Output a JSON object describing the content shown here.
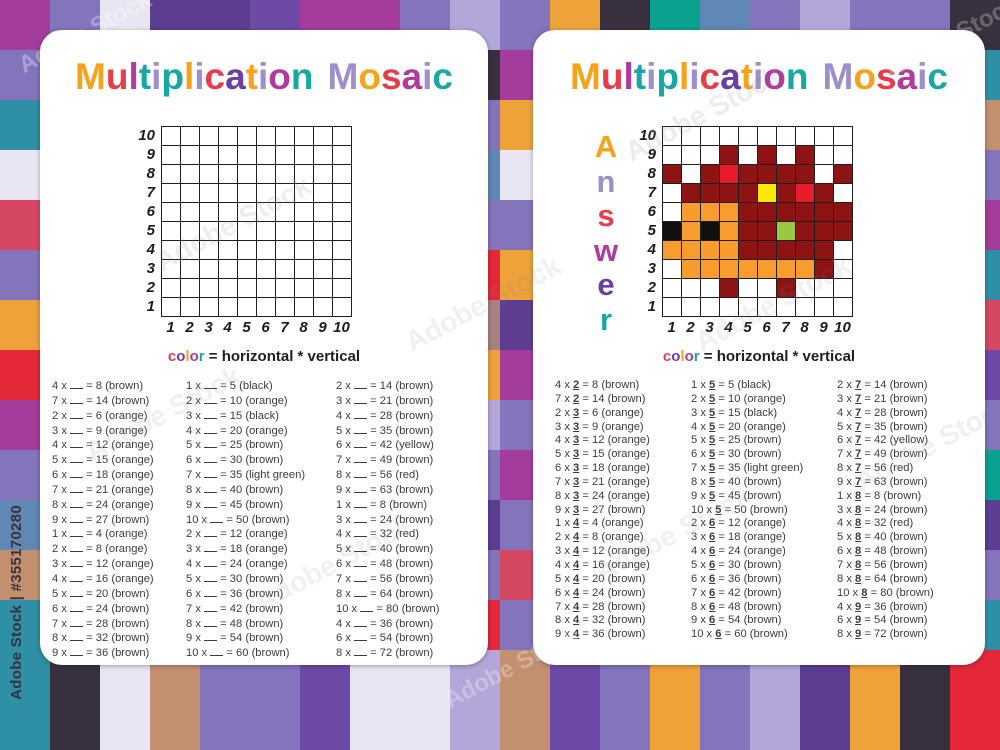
{
  "title": {
    "text": "Multiplication Mosaic",
    "letters": [
      {
        "ch": "M",
        "color": "#F7A21B"
      },
      {
        "ch": "u",
        "color": "#E83C4B"
      },
      {
        "ch": "l",
        "color": "#B13A9C"
      },
      {
        "ch": "t",
        "color": "#18A8A3"
      },
      {
        "ch": "i",
        "color": "#9C8FCC"
      },
      {
        "ch": "p",
        "color": "#18A8A3"
      },
      {
        "ch": "l",
        "color": "#F7A21B"
      },
      {
        "ch": "i",
        "color": "#9C8FCC"
      },
      {
        "ch": "c",
        "color": "#E83C4B"
      },
      {
        "ch": "a",
        "color": "#6B3FA3"
      },
      {
        "ch": "t",
        "color": "#F7A21B"
      },
      {
        "ch": "i",
        "color": "#9C8FCC"
      },
      {
        "ch": "o",
        "color": "#B13A9C"
      },
      {
        "ch": "n",
        "color": "#18A8A3"
      },
      {
        "ch": " ",
        "color": ""
      },
      {
        "ch": "M",
        "color": "#9C8FCC"
      },
      {
        "ch": "o",
        "color": "#F7A21B"
      },
      {
        "ch": "s",
        "color": "#E83C4B"
      },
      {
        "ch": "a",
        "color": "#B13A9C"
      },
      {
        "ch": "i",
        "color": "#9C8FCC"
      },
      {
        "ch": "c",
        "color": "#18A8A3"
      }
    ]
  },
  "answer_word": {
    "text": "Answer",
    "letters": [
      {
        "ch": "A",
        "color": "#F7A21B"
      },
      {
        "ch": "n",
        "color": "#9C8FCC"
      },
      {
        "ch": "s",
        "color": "#E83C4B"
      },
      {
        "ch": "w",
        "color": "#B13A9C"
      },
      {
        "ch": "e",
        "color": "#6B3FA3"
      },
      {
        "ch": "r",
        "color": "#18A8A3"
      }
    ]
  },
  "grid": {
    "row_labels": [
      "10",
      "9",
      "8",
      "7",
      "6",
      "5",
      "4",
      "3",
      "2",
      "1"
    ],
    "col_labels": [
      "1",
      "2",
      "3",
      "4",
      "5",
      "6",
      "7",
      "8",
      "9",
      "10"
    ],
    "legend_color_letters": [
      {
        "ch": "c",
        "color": "#E83C4B"
      },
      {
        "ch": "o",
        "color": "#6B3FA3"
      },
      {
        "ch": "l",
        "color": "#F7A21B"
      },
      {
        "ch": "o",
        "color": "#B13A9C"
      },
      {
        "ch": "r",
        "color": "#18A8A3"
      }
    ],
    "legend_rest": "= horizontal * vertical",
    "times_symbol": "x",
    "equals_symbol": "="
  },
  "colors": {
    "cells": {
      "W": "#FFFFFF",
      "B": "#8E1313",
      "O": "#F79C2D",
      "K": "#101010",
      "R": "#EA1C2C",
      "Y": "#F9E900",
      "G": "#96C93D"
    }
  },
  "answer_grid": [
    [
      "W",
      "W",
      "W",
      "W",
      "W",
      "W",
      "W",
      "W",
      "W",
      "W"
    ],
    [
      "W",
      "W",
      "W",
      "B",
      "W",
      "B",
      "W",
      "B",
      "W",
      "W"
    ],
    [
      "B",
      "W",
      "B",
      "R",
      "B",
      "B",
      "B",
      "B",
      "W",
      "B"
    ],
    [
      "W",
      "B",
      "B",
      "B",
      "B",
      "Y",
      "B",
      "R",
      "B",
      "W"
    ],
    [
      "W",
      "O",
      "O",
      "O",
      "B",
      "B",
      "B",
      "B",
      "B",
      "B"
    ],
    [
      "K",
      "O",
      "K",
      "O",
      "B",
      "B",
      "G",
      "B",
      "B",
      "B"
    ],
    [
      "O",
      "O",
      "O",
      "O",
      "B",
      "B",
      "B",
      "B",
      "B",
      "W"
    ],
    [
      "W",
      "O",
      "O",
      "O",
      "O",
      "O",
      "O",
      "O",
      "B",
      "W"
    ],
    [
      "W",
      "W",
      "W",
      "B",
      "W",
      "W",
      "B",
      "W",
      "W",
      "W"
    ],
    [
      "W",
      "W",
      "W",
      "W",
      "W",
      "W",
      "W",
      "W",
      "W",
      "W"
    ]
  ],
  "problems": {
    "col1": [
      {
        "a": "4",
        "b": "2",
        "result": "8",
        "color": "brown"
      },
      {
        "a": "7",
        "b": "2",
        "result": "14",
        "color": "brown"
      },
      {
        "a": "2",
        "b": "3",
        "result": "6",
        "color": "orange"
      },
      {
        "a": "3",
        "b": "3",
        "result": "9",
        "color": "orange"
      },
      {
        "a": "4",
        "b": "3",
        "result": "12",
        "color": "orange"
      },
      {
        "a": "5",
        "b": "3",
        "result": "15",
        "color": "orange"
      },
      {
        "a": "6",
        "b": "3",
        "result": "18",
        "color": "orange"
      },
      {
        "a": "7",
        "b": "3",
        "result": "21",
        "color": "orange"
      },
      {
        "a": "8",
        "b": "3",
        "result": "24",
        "color": "orange"
      },
      {
        "a": "9",
        "b": "3",
        "result": "27",
        "color": "brown"
      },
      {
        "a": "1",
        "b": "4",
        "result": "4",
        "color": "orange"
      },
      {
        "a": "2",
        "b": "4",
        "result": "8",
        "color": "orange"
      },
      {
        "a": "3",
        "b": "4",
        "result": "12",
        "color": "orange"
      },
      {
        "a": "4",
        "b": "4",
        "result": "16",
        "color": "orange"
      },
      {
        "a": "5",
        "b": "4",
        "result": "20",
        "color": "brown"
      },
      {
        "a": "6",
        "b": "4",
        "result": "24",
        "color": "brown"
      },
      {
        "a": "7",
        "b": "4",
        "result": "28",
        "color": "brown"
      },
      {
        "a": "8",
        "b": "4",
        "result": "32",
        "color": "brown"
      },
      {
        "a": "9",
        "b": "4",
        "result": "36",
        "color": "brown"
      }
    ],
    "col2": [
      {
        "a": "1",
        "b": "5",
        "result": "5",
        "color": "black"
      },
      {
        "a": "2",
        "b": "5",
        "result": "10",
        "color": "orange"
      },
      {
        "a": "3",
        "b": "5",
        "result": "15",
        "color": "black"
      },
      {
        "a": "4",
        "b": "5",
        "result": "20",
        "color": "orange"
      },
      {
        "a": "5",
        "b": "5",
        "result": "25",
        "color": "brown"
      },
      {
        "a": "6",
        "b": "5",
        "result": "30",
        "color": "brown"
      },
      {
        "a": "7",
        "b": "5",
        "result": "35",
        "color": "light green"
      },
      {
        "a": "8",
        "b": "5",
        "result": "40",
        "color": "brown"
      },
      {
        "a": "9",
        "b": "5",
        "result": "45",
        "color": "brown"
      },
      {
        "a": "10",
        "b": "5",
        "result": "50",
        "color": "brown"
      },
      {
        "a": "2",
        "b": "6",
        "result": "12",
        "color": "orange"
      },
      {
        "a": "3",
        "b": "6",
        "result": "18",
        "color": "orange"
      },
      {
        "a": "4",
        "b": "6",
        "result": "24",
        "color": "orange"
      },
      {
        "a": "5",
        "b": "6",
        "result": "30",
        "color": "brown"
      },
      {
        "a": "6",
        "b": "6",
        "result": "36",
        "color": "brown"
      },
      {
        "a": "7",
        "b": "6",
        "result": "42",
        "color": "brown"
      },
      {
        "a": "8",
        "b": "6",
        "result": "48",
        "color": "brown"
      },
      {
        "a": "9",
        "b": "6",
        "result": "54",
        "color": "brown"
      },
      {
        "a": "10",
        "b": "6",
        "result": "60",
        "color": "brown"
      }
    ],
    "col3": [
      {
        "a": "2",
        "b": "7",
        "result": "14",
        "color": "brown"
      },
      {
        "a": "3",
        "b": "7",
        "result": "21",
        "color": "brown"
      },
      {
        "a": "4",
        "b": "7",
        "result": "28",
        "color": "brown"
      },
      {
        "a": "5",
        "b": "7",
        "result": "35",
        "color": "brown"
      },
      {
        "a": "6",
        "b": "7",
        "result": "42",
        "color": "yellow"
      },
      {
        "a": "7",
        "b": "7",
        "result": "49",
        "color": "brown"
      },
      {
        "a": "8",
        "b": "7",
        "result": "56",
        "color": "red"
      },
      {
        "a": "9",
        "b": "7",
        "result": "63",
        "color": "brown"
      },
      {
        "a": "1",
        "b": "8",
        "result": "8",
        "color": "brown"
      },
      {
        "a": "3",
        "b": "8",
        "result": "24",
        "color": "brown"
      },
      {
        "a": "4",
        "b": "8",
        "result": "32",
        "color": "red"
      },
      {
        "a": "5",
        "b": "8",
        "result": "40",
        "color": "brown"
      },
      {
        "a": "6",
        "b": "8",
        "result": "48",
        "color": "brown"
      },
      {
        "a": "7",
        "b": "8",
        "result": "56",
        "color": "brown"
      },
      {
        "a": "8",
        "b": "8",
        "result": "64",
        "color": "brown"
      },
      {
        "a": "10",
        "b": "8",
        "result": "80",
        "color": "brown"
      },
      {
        "a": "4",
        "b": "9",
        "result": "36",
        "color": "brown"
      },
      {
        "a": "6",
        "b": "9",
        "result": "54",
        "color": "brown"
      },
      {
        "a": "8",
        "b": "9",
        "result": "72",
        "color": "brown"
      }
    ]
  },
  "watermark": {
    "text": "Adobe Stock",
    "id_text": "Adobe Stock | #355170280"
  },
  "background": {
    "palette": {
      "MG": "#A43C9B",
      "SP": "#8374BC",
      "LL": "#E9E6F3",
      "DP": "#5C3D92",
      "PU": "#6C4AA5",
      "LV": "#B3A6D8",
      "TL": "#2E8FA5",
      "TG": "#0AA18E",
      "OR": "#EDA23A",
      "CH": "#39303F",
      "CR": "#D64762",
      "SB": "#5F88B4",
      "TN": "#C2906F",
      "RD": "#E42837",
      "MV": "#A8827F"
    },
    "rows": [
      [
        "MG",
        "SP",
        "LL",
        "DP",
        "DP",
        "PU",
        "MG",
        "MG",
        "SP",
        "LV",
        "SP",
        "OR",
        "CH",
        "TG",
        "SB",
        "SP",
        "LV",
        "SP",
        "SP",
        "CH"
      ],
      [
        "SP",
        "MG",
        "DP",
        "LV",
        "TL",
        "MG",
        "SP",
        "DP",
        "PU",
        "CH",
        "MG",
        "LL",
        "SP",
        "TN",
        "MG",
        "PU",
        "SP",
        "CR",
        "DP",
        "TL"
      ],
      [
        "TL",
        "DP",
        "MG",
        "SP",
        "OR",
        "LV",
        "DP",
        "MG",
        "LL",
        "SP",
        "OR",
        "DP",
        "SP",
        "MG",
        "LV",
        "TL",
        "SP",
        "DP",
        "MG",
        "TN"
      ],
      [
        "LL",
        "SP",
        "TL",
        "MG",
        "DP",
        "SP",
        "LV",
        "OR",
        "SP",
        "SB",
        "LL",
        "MG",
        "DP",
        "SP",
        "TL",
        "LV",
        "MG",
        "SP",
        "DP",
        "SP"
      ],
      [
        "CR",
        "MG",
        "SP",
        "DP",
        "LV",
        "TL",
        "MG",
        "SP",
        "DP",
        "SP",
        "SP",
        "TL",
        "OR",
        "MG",
        "SP",
        "DP",
        "LV",
        "TL",
        "SP",
        "MG"
      ],
      [
        "SP",
        "DP",
        "MG",
        "LV",
        "SP",
        "MG",
        "TL",
        "DP",
        "MG",
        "RD",
        "OR",
        "SP",
        "MG",
        "DP",
        "TL",
        "SP",
        "MG",
        "LV",
        "DP",
        "TL"
      ],
      [
        "OR",
        "TL",
        "DP",
        "SP",
        "MG",
        "LV",
        "SP",
        "MG",
        "SP",
        "MV",
        "DP",
        "MG",
        "SP",
        "TL",
        "LV",
        "MG",
        "DP",
        "SP",
        "TL",
        "CR"
      ],
      [
        "RD",
        "SP",
        "MG",
        "TL",
        "DP",
        "MG",
        "LV",
        "SP",
        "TL",
        "OR",
        "MG",
        "DP",
        "LV",
        "SP",
        "MG",
        "TL",
        "SP",
        "DP",
        "MG",
        "PU"
      ],
      [
        "MG",
        "LV",
        "SP",
        "DP",
        "TL",
        "SP",
        "MG",
        "DP",
        "SP",
        "LV",
        "SP",
        "MG",
        "TL",
        "DP",
        "SP",
        "LV",
        "MG",
        "TL",
        "DP",
        "SP"
      ],
      [
        "SP",
        "TL",
        "LV",
        "MG",
        "SP",
        "DP",
        "TL",
        "MG",
        "DP",
        "SP",
        "MG",
        "SP",
        "DP",
        "LV",
        "TL",
        "MG",
        "SP",
        "DP",
        "LV",
        "TG"
      ],
      [
        "SB",
        "MG",
        "DP",
        "SP",
        "LV",
        "TL",
        "MG",
        "SP",
        "MG",
        "DP",
        "SP",
        "TL",
        "MG",
        "SP",
        "DP",
        "LV",
        "TL",
        "MG",
        "SP",
        "DP"
      ],
      [
        "TN",
        "DP",
        "SP",
        "MG",
        "TL",
        "LV",
        "DP",
        "MG",
        "SP",
        "SP",
        "CR",
        "MG",
        "LV",
        "DP",
        "SP",
        "TL",
        "MG",
        "SP",
        "DP",
        "SP"
      ],
      [
        "TL",
        "SP",
        "MG",
        "DP",
        "LV",
        "MG",
        "SP",
        "TL",
        "DP",
        "RD",
        "SP",
        "DP",
        "MG",
        "TL",
        "LV",
        "SP",
        "DP",
        "MG",
        "TL",
        "TL"
      ],
      [
        "TL",
        "CH",
        "LL",
        "TN",
        "SP",
        "SP",
        "PU",
        "LL",
        "LL",
        "LV",
        "TN",
        "PU",
        "SP",
        "OR",
        "SP",
        "LV",
        "DP",
        "OR",
        "CH",
        "RD"
      ],
      [
        "TL",
        "CH",
        "LL",
        "TN",
        "SP",
        "SP",
        "PU",
        "LL",
        "LL",
        "LV",
        "TN",
        "PU",
        "SP",
        "OR",
        "SP",
        "LV",
        "DP",
        "OR",
        "CH",
        "RD"
      ]
    ]
  }
}
